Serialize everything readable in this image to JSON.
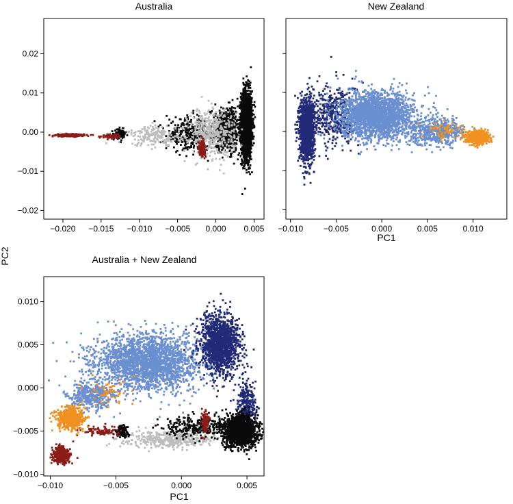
{
  "figure": {
    "shared_ylabel": "PC2",
    "colors": {
      "black": "#0a0a0a",
      "grey": "#bdbdbd",
      "darkred": "#8b1c17",
      "navy": "#222a78",
      "lightblue": "#6a8fd0",
      "orange": "#f0901f"
    }
  },
  "chart_data": [
    {
      "type": "scatter",
      "title": "Australia",
      "xlabel": "",
      "ylabel": "PC2",
      "xlim": [
        -0.0225,
        0.0063
      ],
      "ylim": [
        -0.0222,
        0.029
      ],
      "xticks": [
        "-0.020",
        "-0.015",
        "-0.010",
        "-0.005",
        "0.000",
        "0.005"
      ],
      "yticks": [
        "-0.02",
        "-0.01",
        "0.00",
        "0.01",
        "0.02"
      ],
      "grid": false,
      "series": [
        {
          "color": "#0a0a0a",
          "clusters": [
            {
              "center": [
                0.004,
                0.002
              ],
              "spread": [
                0.0007,
                0.0085
              ],
              "n": 2200
            },
            {
              "center": [
                0.0015,
                0.0005
              ],
              "spread": [
                0.002,
                0.0055
              ],
              "n": 600
            },
            {
              "center": [
                -0.0035,
                -0.0005
              ],
              "spread": [
                0.003,
                0.004
              ],
              "n": 300
            },
            {
              "center": [
                -0.0125,
                -0.0005
              ],
              "spread": [
                0.0007,
                0.0012
              ],
              "n": 130
            }
          ]
        },
        {
          "color": "#bdbdbd",
          "clusters": [
            {
              "center": [
                -0.0005,
                0.0
              ],
              "spread": [
                0.003,
                0.006
              ],
              "n": 420
            },
            {
              "center": [
                -0.008,
                -0.001
              ],
              "spread": [
                0.0035,
                0.0025
              ],
              "n": 180
            }
          ]
        },
        {
          "color": "#8b1c17",
          "clusters": [
            {
              "center": [
                -0.019,
                -0.0008
              ],
              "spread": [
                0.0018,
                0.0003
              ],
              "n": 360
            },
            {
              "center": [
                -0.0018,
                -0.004
              ],
              "spread": [
                0.0004,
                0.0018
              ],
              "n": 150
            },
            {
              "center": [
                -0.0135,
                -0.001
              ],
              "spread": [
                0.0015,
                0.0006
              ],
              "n": 60
            }
          ]
        }
      ]
    },
    {
      "type": "scatter",
      "title": "New Zealand",
      "xlabel": "PC1",
      "ylabel": "",
      "xlim": [
        -0.0105,
        0.0137
      ],
      "ylim": [
        -0.0225,
        0.029
      ],
      "xticks": [
        "-0.010",
        "-0.005",
        "0.000",
        "0.005",
        "0.010"
      ],
      "yticks": [
        "",
        "",
        "",
        "",
        ""
      ],
      "grid": false,
      "series": [
        {
          "color": "#222a78",
          "clusters": [
            {
              "center": [
                -0.0082,
                0.0005
              ],
              "spread": [
                0.0008,
                0.008
              ],
              "n": 1400
            },
            {
              "center": [
                -0.005,
                0.004
              ],
              "spread": [
                0.0025,
                0.008
              ],
              "n": 450
            }
          ]
        },
        {
          "color": "#6a8fd0",
          "clusters": [
            {
              "center": [
                -0.0005,
                0.004
              ],
              "spread": [
                0.004,
                0.006
              ],
              "n": 2200
            },
            {
              "center": [
                0.006,
                0.0
              ],
              "spread": [
                0.003,
                0.0035
              ],
              "n": 500
            }
          ]
        },
        {
          "color": "#f0901f",
          "clusters": [
            {
              "center": [
                0.0105,
                -0.0015
              ],
              "spread": [
                0.0012,
                0.0017
              ],
              "n": 500
            },
            {
              "center": [
                0.007,
                0.0005
              ],
              "spread": [
                0.002,
                0.002
              ],
              "n": 60
            }
          ]
        }
      ]
    },
    {
      "type": "scatter",
      "title": "Australia + New Zealand",
      "xlabel": "PC1",
      "ylabel": "",
      "xlim": [
        -0.0105,
        0.0063
      ],
      "ylim": [
        -0.0102,
        0.0129
      ],
      "xticks": [
        "-0.010",
        "-0.005",
        "0.000",
        "0.005"
      ],
      "yticks": [
        "-0.010",
        "-0.005",
        "0.000",
        "0.005",
        "0.010"
      ],
      "grid": false,
      "series": [
        {
          "color": "#6a8fd0",
          "clusters": [
            {
              "center": [
                -0.0025,
                0.003
              ],
              "spread": [
                0.004,
                0.0032
              ],
              "n": 2400
            },
            {
              "center": [
                -0.007,
                -0.001
              ],
              "spread": [
                0.0018,
                0.0018
              ],
              "n": 400
            }
          ]
        },
        {
          "color": "#222a78",
          "clusters": [
            {
              "center": [
                0.003,
                0.005
              ],
              "spread": [
                0.0015,
                0.0035
              ],
              "n": 1400
            },
            {
              "center": [
                0.005,
                -0.002
              ],
              "spread": [
                0.0007,
                0.0025
              ],
              "n": 300
            }
          ]
        },
        {
          "color": "#bdbdbd",
          "clusters": [
            {
              "center": [
                -0.001,
                -0.006
              ],
              "spread": [
                0.0035,
                0.0009
              ],
              "n": 400
            }
          ]
        },
        {
          "color": "#0a0a0a",
          "clusters": [
            {
              "center": [
                0.0045,
                -0.005
              ],
              "spread": [
                0.0013,
                0.0018
              ],
              "n": 1400
            },
            {
              "center": [
                0.001,
                -0.0045
              ],
              "spread": [
                0.0025,
                0.0013
              ],
              "n": 300
            },
            {
              "center": [
                -0.0045,
                -0.005
              ],
              "spread": [
                0.0005,
                0.0006
              ],
              "n": 120
            }
          ]
        },
        {
          "color": "#8b1c17",
          "clusters": [
            {
              "center": [
                -0.0092,
                -0.0078
              ],
              "spread": [
                0.0006,
                0.001
              ],
              "n": 380
            },
            {
              "center": [
                0.0018,
                -0.004
              ],
              "spread": [
                0.0003,
                0.0012
              ],
              "n": 100
            },
            {
              "center": [
                -0.006,
                -0.005
              ],
              "spread": [
                0.0015,
                0.0006
              ],
              "n": 90
            }
          ]
        },
        {
          "color": "#f0901f",
          "clusters": [
            {
              "center": [
                -0.0085,
                -0.0035
              ],
              "spread": [
                0.001,
                0.0013
              ],
              "n": 550
            },
            {
              "center": [
                -0.0055,
                -0.0005
              ],
              "spread": [
                0.0015,
                0.0015
              ],
              "n": 60
            }
          ]
        }
      ]
    }
  ]
}
